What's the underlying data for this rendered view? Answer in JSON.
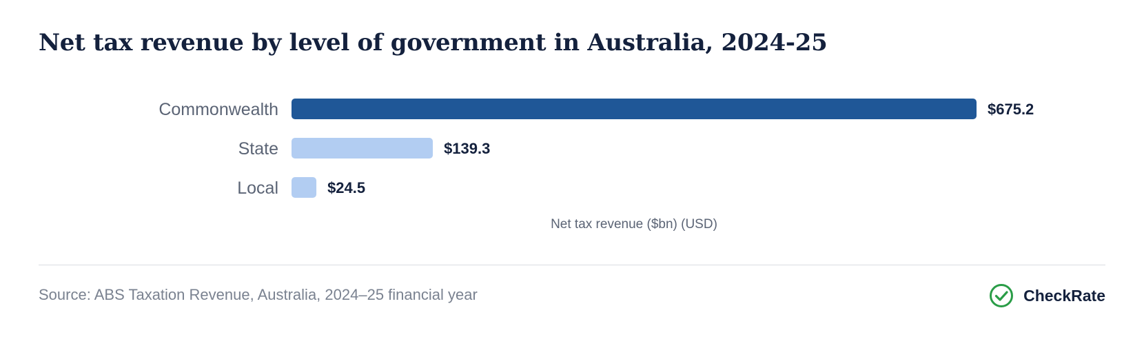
{
  "header": {
    "title": "Net tax revenue by level of government in Australia, 2024-25"
  },
  "chart_data": {
    "type": "bar",
    "orientation": "horizontal",
    "title": "Net tax revenue by level of government in Australia, 2024-25",
    "xlabel": "Net tax revenue ($bn) (USD)",
    "ylabel": "",
    "categories": [
      "Commonwealth",
      "State",
      "Local"
    ],
    "values": [
      675.2,
      139.3,
      24.5
    ],
    "value_labels": [
      "$675.2",
      "$139.3",
      "$24.5"
    ],
    "xlim": [
      0,
      675.2
    ],
    "grid": false,
    "legend": "none",
    "colors": [
      "#1f5797",
      "#b2cdf2",
      "#b2cdf2"
    ]
  },
  "footer": {
    "source": "Source: ABS Taxation Revenue, Australia, 2024–25 financial year",
    "brand": "CheckRate",
    "brand_icon": "check-circle-icon",
    "brand_color": "#2a9d47"
  }
}
